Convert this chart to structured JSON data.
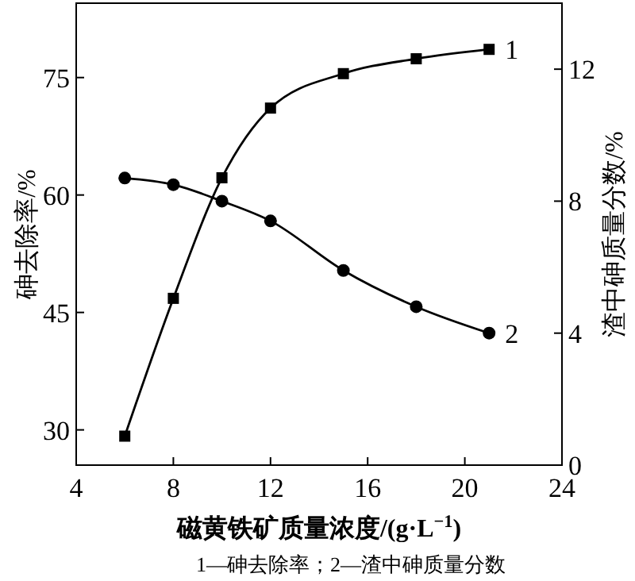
{
  "chart_data": {
    "type": "line",
    "xlabel": "磁黄铁矿质量浓度/(g·L$^{−1}$)",
    "ylabel": "砷去除率/%",
    "y2label": "渣中砷质量分数/%",
    "xlim": [
      4,
      24
    ],
    "xticks": [
      4,
      8,
      12,
      16,
      20,
      24
    ],
    "ylim": [
      25.5,
      84.5
    ],
    "yticks": [
      30,
      45,
      60,
      75
    ],
    "y2lim": [
      0,
      14
    ],
    "y2ticks": [
      0,
      4,
      8,
      12
    ],
    "grid": false,
    "line_style": "solid",
    "series": [
      {
        "name": "1",
        "color": "#000000",
        "marker": "square",
        "x": [
          6,
          8,
          10,
          12,
          15,
          18,
          21
        ],
        "values": [
          29.2,
          46.8,
          62.2,
          71.1,
          75.5,
          77.4,
          78.6
        ]
      },
      {
        "name": "2",
        "color": "#000000",
        "marker": "circle",
        "axis": "y2",
        "x": [
          6,
          8,
          10,
          12,
          15,
          18,
          21
        ],
        "values": [
          8.7,
          8.5,
          8.0,
          7.4,
          5.9,
          4.8,
          4.0
        ]
      }
    ],
    "annotations": [
      "1—砷去除率；2—渣中砷质量分数"
    ]
  }
}
